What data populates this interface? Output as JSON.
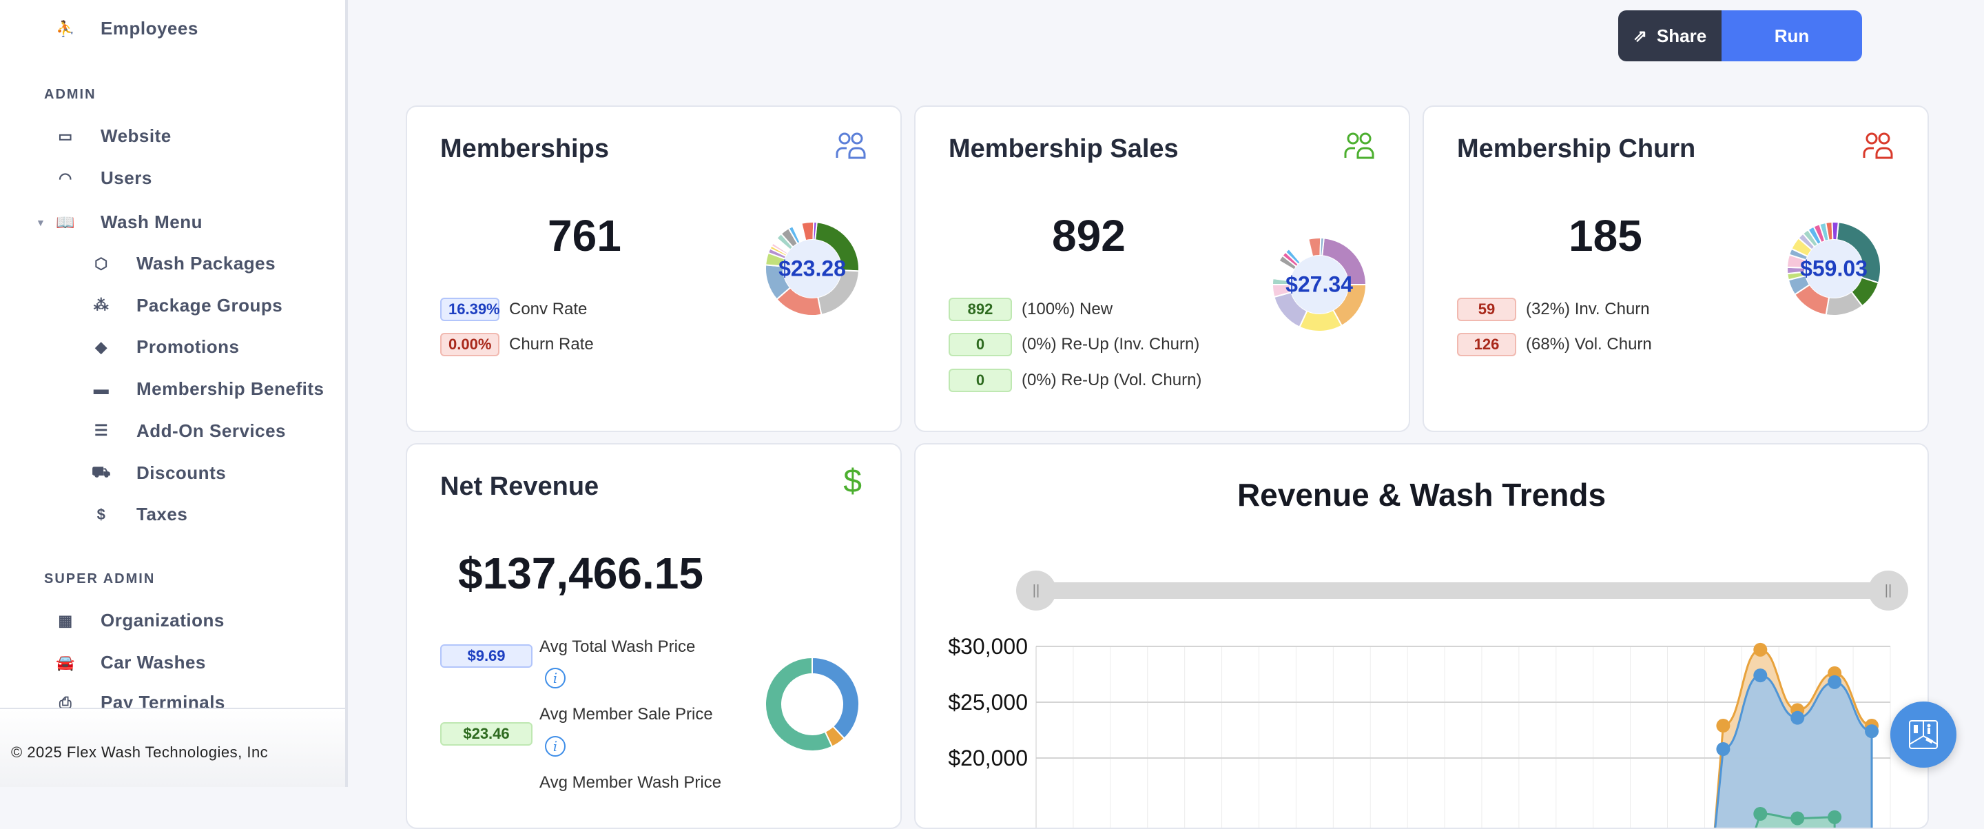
{
  "sidebar": {
    "top_item": {
      "label": "Employees",
      "icon": "employees-icon"
    },
    "admin_header": "ADMIN",
    "admin_items": [
      {
        "label": "Website",
        "icon": "website-icon"
      },
      {
        "label": "Users",
        "icon": "users-icon"
      },
      {
        "label": "Wash Menu",
        "icon": "book-icon",
        "expanded": true
      }
    ],
    "wash_menu_items": [
      {
        "label": "Wash Packages",
        "icon": "box-icon"
      },
      {
        "label": "Package Groups",
        "icon": "boxes-icon"
      },
      {
        "label": "Promotions",
        "icon": "ticket-icon"
      },
      {
        "label": "Membership Benefits",
        "icon": "gift-icon"
      },
      {
        "label": "Add-On Services",
        "icon": "list-card-icon"
      },
      {
        "label": "Discounts",
        "icon": "cart-discount-icon"
      },
      {
        "label": "Taxes",
        "icon": "tax-icon"
      }
    ],
    "super_admin_header": "SUPER ADMIN",
    "super_admin_items": [
      {
        "label": "Organizations",
        "icon": "building-icon"
      },
      {
        "label": "Car Washes",
        "icon": "car-wash-icon"
      },
      {
        "label": "Pay Terminals",
        "icon": "terminal-icon"
      }
    ],
    "footer": "© 2025 Flex Wash Technologies, Inc"
  },
  "toolbar": {
    "share_label": "Share",
    "run_label": "Run"
  },
  "memberships": {
    "title": "Memberships",
    "value": "761",
    "donut_label": "$23.28",
    "icon_color": "#5b7fd8",
    "stats": [
      {
        "value": "16.39%",
        "label": "Conv Rate",
        "tone": "blue"
      },
      {
        "value": "0.00%",
        "label": "Churn Rate",
        "tone": "red"
      }
    ]
  },
  "sales": {
    "title": "Membership Sales",
    "value": "892",
    "donut_label": "$27.34",
    "icon_color": "#4caf2f",
    "stats": [
      {
        "value": "892",
        "label": "(100%) New"
      },
      {
        "value": "0",
        "label": "(0%) Re-Up (Inv. Churn)"
      },
      {
        "value": "0",
        "label": "(0%) Re-Up (Vol. Churn)"
      }
    ]
  },
  "churn": {
    "title": "Membership Churn",
    "value": "185",
    "donut_label": "$59.03",
    "icon_color": "#d93a2b",
    "stats": [
      {
        "value": "59",
        "label": "(32%) Inv. Churn"
      },
      {
        "value": "126",
        "label": "(68%) Vol. Churn"
      }
    ]
  },
  "net_revenue": {
    "title": "Net Revenue",
    "value": "$137,466.15",
    "icon_color": "#4caf2f",
    "stats": [
      {
        "value": "$9.69",
        "label": "Avg Total Wash Price",
        "tone": "blue"
      },
      {
        "value": "$23.46",
        "label": "Avg Member Sale Price",
        "tone": "green"
      },
      {
        "value": "",
        "label": "Avg Member Wash Price"
      }
    ]
  },
  "donuts": {
    "memberships": [
      {
        "v": 23,
        "c": "#3a7d22"
      },
      {
        "v": 20,
        "c": "#c2c2c2"
      },
      {
        "v": 16,
        "c": "#ec8878"
      },
      {
        "v": 12,
        "c": "#8bb0d2"
      },
      {
        "v": 4,
        "c": "#c2e07a"
      },
      {
        "v": 1.5,
        "c": "#b58fd0"
      },
      {
        "v": 1,
        "c": "#f6d860"
      },
      {
        "v": 1,
        "c": "#f7c7da"
      },
      {
        "v": 2,
        "c": "#ffffff"
      },
      {
        "v": 2,
        "c": "#a4d6c8"
      },
      {
        "v": 3,
        "c": "#a0a0a0"
      },
      {
        "v": 1.5,
        "c": "#5fb8f0"
      },
      {
        "v": 3,
        "c": "#ffffff"
      },
      {
        "v": 4,
        "c": "#ec6f5a"
      },
      {
        "v": 1,
        "c": "#8e44e0"
      }
    ],
    "sales": [
      {
        "v": 22,
        "c": "#b484c0"
      },
      {
        "v": 16,
        "c": "#f2b96b"
      },
      {
        "v": 14,
        "c": "#fbea7a"
      },
      {
        "v": 13,
        "c": "#c0bde0"
      },
      {
        "v": 4,
        "c": "#f6cde0"
      },
      {
        "v": 2,
        "c": "#a4d6c8"
      },
      {
        "v": 6,
        "c": "#ffffff"
      },
      {
        "v": 2,
        "c": "#a0a0a0"
      },
      {
        "v": 1.5,
        "c": "#e85ea0"
      },
      {
        "v": 1.5,
        "c": "#5fb8f0"
      },
      {
        "v": 7,
        "c": "#ffffff"
      },
      {
        "v": 4,
        "c": "#ec8878"
      },
      {
        "v": 1,
        "c": "#8bb0d2"
      }
    ],
    "churn": [
      {
        "v": 26,
        "c": "#3a7d7a"
      },
      {
        "v": 9,
        "c": "#3a7d22"
      },
      {
        "v": 12,
        "c": "#c2c2c2"
      },
      {
        "v": 12,
        "c": "#ec8878"
      },
      {
        "v": 5,
        "c": "#8bb0d2"
      },
      {
        "v": 2,
        "c": "#c2e07a"
      },
      {
        "v": 2,
        "c": "#b58fd0"
      },
      {
        "v": 4,
        "c": "#f7c7da"
      },
      {
        "v": 2,
        "c": "#8bb0d2"
      },
      {
        "v": 4,
        "c": "#fbea7a"
      },
      {
        "v": 2,
        "c": "#c0bde0"
      },
      {
        "v": 2,
        "c": "#a4d6c8"
      },
      {
        "v": 2,
        "c": "#5fb8f0"
      },
      {
        "v": 2,
        "c": "#e85ea0"
      },
      {
        "v": 2,
        "c": "#7fd0e0"
      },
      {
        "v": 2,
        "c": "#ec6f5a"
      },
      {
        "v": 2,
        "c": "#8e44e0"
      }
    ],
    "net_revenue": [
      {
        "v": 38,
        "c": "#5294d6"
      },
      {
        "v": 5,
        "c": "#e8a23c"
      },
      {
        "v": 57,
        "c": "#5bb89a"
      }
    ]
  },
  "chart_data": {
    "type": "area",
    "title": "Revenue & Wash Trends",
    "ylabel": "",
    "yticks": [
      "$30,000",
      "$25,000",
      "$20,000"
    ],
    "ylim_visible": [
      18000,
      30000
    ],
    "x_count": 23,
    "grid": true,
    "range_slider": {
      "start": 0,
      "end": 1
    },
    "series": [
      {
        "color": "#e8a23c",
        "fill": "#f4cf9e",
        "x": [
          18,
          19,
          20,
          21,
          22
        ],
        "values": [
          22900,
          29700,
          24300,
          27600,
          22900
        ]
      },
      {
        "color": "#4f95d6",
        "fill": "#a3c6e8",
        "x": [
          18,
          19,
          20,
          21,
          22
        ],
        "values": [
          20800,
          27400,
          23600,
          26800,
          22400
        ]
      },
      {
        "color": "#4fae8e",
        "fill": "#9ed7c2",
        "x": [
          19,
          20,
          21
        ],
        "values": [
          15000,
          14600,
          14700
        ]
      }
    ]
  }
}
